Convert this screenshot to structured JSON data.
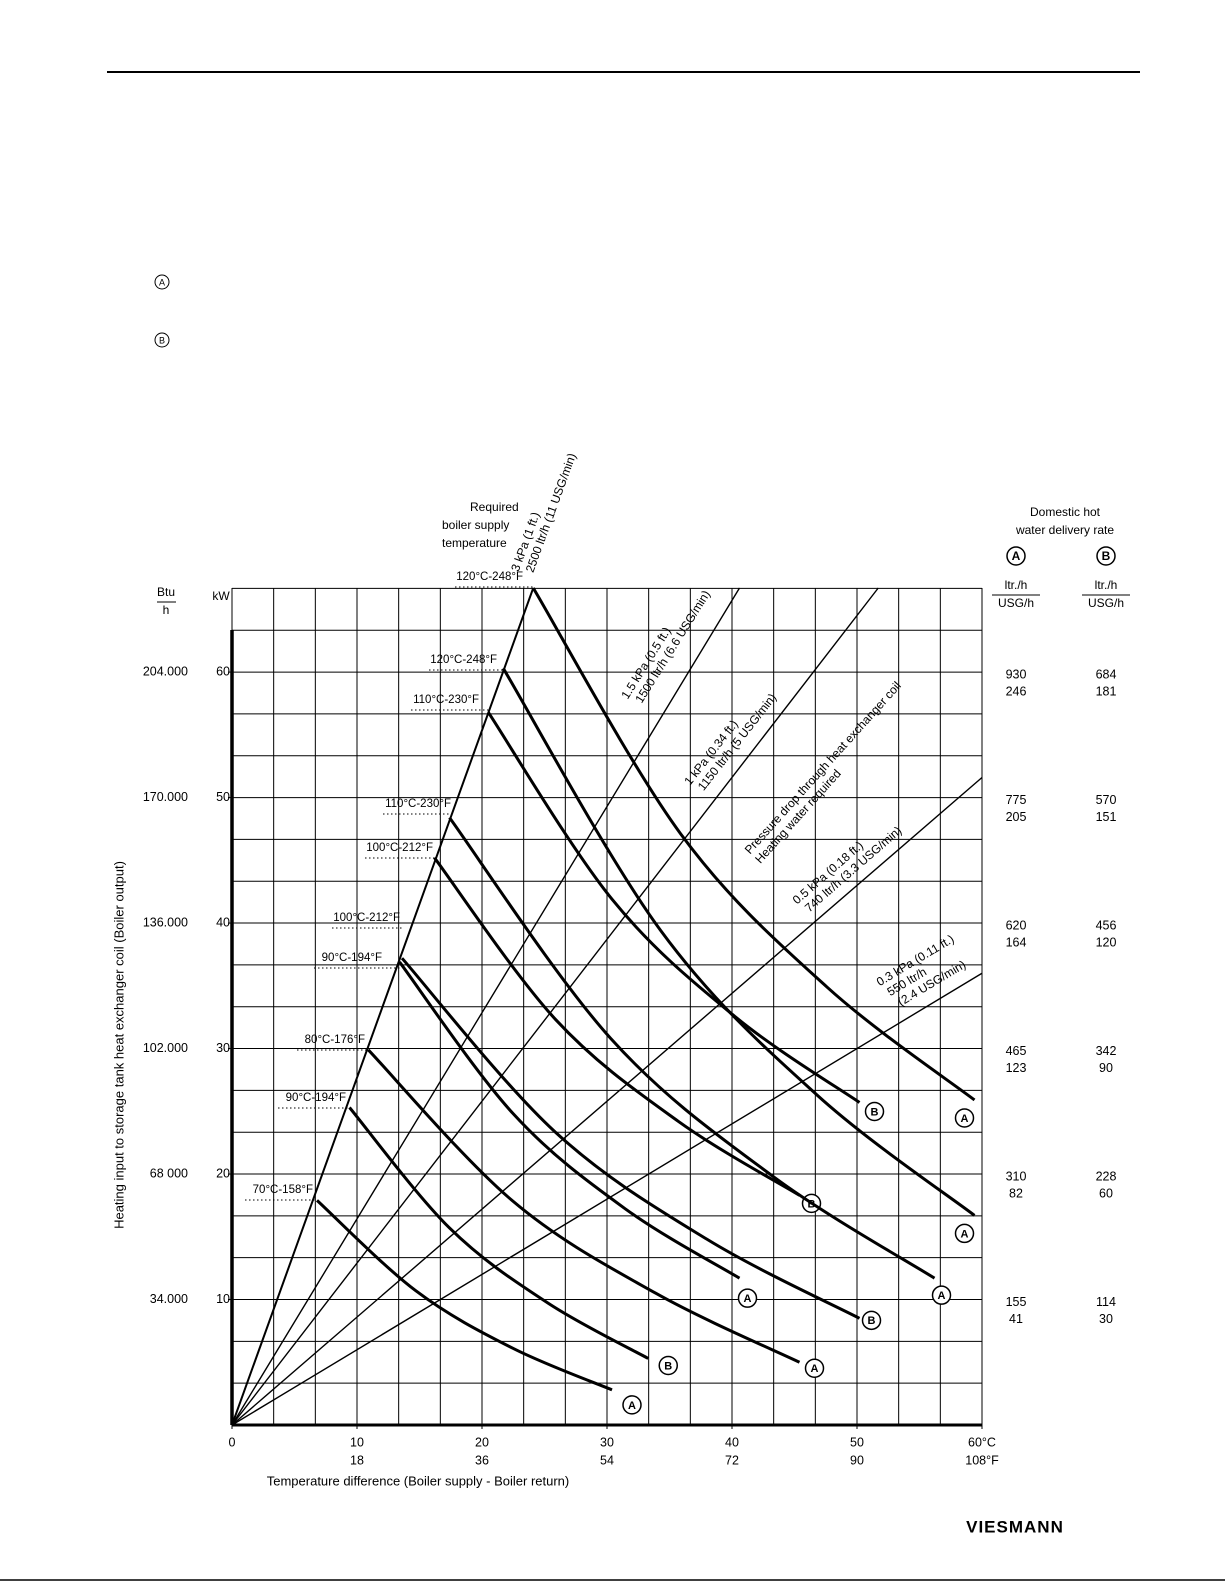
{
  "markers": [
    "A",
    "B"
  ],
  "logo": "VIESMANN",
  "chart_data": {
    "type": "line",
    "color": "#000000",
    "supply_title": [
      "Required",
      "boiler supply",
      "temperature"
    ],
    "xlabel": "Temperature difference (Boiler supply - Boiler return)",
    "ylabel": "Heating input to storage tank heat exchanger coil (Boiler output)",
    "xlim": [
      0,
      60
    ],
    "ylim": [
      0,
      66.7
    ],
    "xticks": [
      0,
      10,
      20,
      30,
      40,
      50,
      {
        "value": 60,
        "label": "60°C"
      }
    ],
    "x2ticks": [
      {
        "value": 10,
        "label": "18"
      },
      {
        "value": 20,
        "label": "36"
      },
      {
        "value": 30,
        "label": "54"
      },
      {
        "value": 40,
        "label": "72"
      },
      {
        "value": 50,
        "label": "90"
      },
      {
        "value": 60,
        "label": "108°F"
      }
    ],
    "y_unit": "kW",
    "yticks": [
      10,
      20,
      30,
      40,
      50,
      60
    ],
    "btu_unit": [
      "Btu",
      "h"
    ],
    "btu_ticks": [
      {
        "value": 10,
        "label": "34.000"
      },
      {
        "value": 20,
        "label": "68 000"
      },
      {
        "value": 30,
        "label": "102.000"
      },
      {
        "value": 40,
        "label": "136.000"
      },
      {
        "value": 50,
        "label": "170.000"
      },
      {
        "value": 60,
        "label": "204.000"
      }
    ],
    "grid": true,
    "minor_grid": 3,
    "rate_title": [
      "Domestic hot",
      "water delivery rate"
    ],
    "rate_units": [
      "ltr./h",
      "USG/h"
    ],
    "rate_columns": [
      {
        "name": "A",
        "ltr_ticks": [
          {
            "value": 10,
            "label": "155"
          },
          {
            "value": 20,
            "label": "310"
          },
          {
            "value": 30,
            "label": "465"
          },
          {
            "value": 40,
            "label": "620"
          },
          {
            "value": 50,
            "label": "775"
          },
          {
            "value": 60,
            "label": "930"
          }
        ],
        "usg_ticks": [
          {
            "value": 10,
            "label": "41"
          },
          {
            "value": 20,
            "label": "82"
          },
          {
            "value": 30,
            "label": "123"
          },
          {
            "value": 40,
            "label": "164"
          },
          {
            "value": 50,
            "label": "205"
          },
          {
            "value": 60,
            "label": "246"
          }
        ]
      },
      {
        "name": "B",
        "ltr_ticks": [
          {
            "value": 10,
            "label": "114"
          },
          {
            "value": 20,
            "label": "228"
          },
          {
            "value": 30,
            "label": "342"
          },
          {
            "value": 40,
            "label": "456"
          },
          {
            "value": 50,
            "label": "570"
          },
          {
            "value": 60,
            "label": "684"
          }
        ],
        "usg_ticks": [
          {
            "value": 10,
            "label": "30"
          },
          {
            "value": 20,
            "label": "60"
          },
          {
            "value": 30,
            "label": "90"
          },
          {
            "value": 40,
            "label": "120"
          },
          {
            "value": 50,
            "label": "151"
          },
          {
            "value": 60,
            "label": "181"
          }
        ]
      }
    ],
    "pressure_title": [
      "Pressure drop through heat exchanger coil",
      "Heating water required"
    ],
    "pressure_lines": [
      {
        "label": [
          "3 kPa (1 ft.)",
          "2500 ltr/h (11 USG/min)"
        ],
        "x": [
          0,
          24.1
        ],
        "values": [
          0,
          66.7
        ]
      },
      {
        "label": [
          "1.5 kPa (0.5 ft.)",
          "1500 ltr/h (6.6 USG/min)"
        ],
        "x": [
          0,
          40.6
        ],
        "values": [
          0,
          66.7
        ]
      },
      {
        "label": [
          "1 kPa (0.34 ft.)",
          "1150 ltr/h (5 USG/min)"
        ],
        "x": [
          0,
          51.7
        ],
        "values": [
          0,
          66.7
        ]
      },
      {
        "label": [
          "0.5 kPa (0.18 ft.)",
          "740 ltr/h (3.3 USG/min)"
        ],
        "x": [
          0,
          60
        ],
        "values": [
          0,
          51.6
        ]
      },
      {
        "label": [
          "0.3 kPa (0.11 ft.)",
          "550 ltr/h",
          "(2.4 USG/min)"
        ],
        "x": [
          0,
          60
        ],
        "values": [
          0,
          36
        ]
      }
    ],
    "series": [
      {
        "name": "70°C-158°F",
        "end_label": "A",
        "x": [
          6.8,
          14.7,
          22.5,
          30.4
        ],
        "values": [
          17.9,
          10.7,
          6.1,
          2.8
        ]
      },
      {
        "name": "90°C-194°F",
        "end_label": "B",
        "x": [
          9.4,
          17.4,
          25.3,
          33.3
        ],
        "values": [
          25.3,
          15.7,
          9.7,
          5.3
        ]
      },
      {
        "name": "80°C-176°F",
        "end_label": "A",
        "x": [
          10.9,
          22.4,
          33.9,
          45.4
        ],
        "values": [
          29.9,
          17.9,
          10.5,
          5.0
        ]
      },
      {
        "name": "90°C-194°F",
        "end_label": "A",
        "x": [
          13.4,
          22.5,
          31.5,
          40.6
        ],
        "values": [
          36.9,
          24.8,
          17.2,
          11.7
        ]
      },
      {
        "name": "100°C-212°F",
        "end_label": "B",
        "x": [
          13.6,
          25.8,
          38.0,
          50.2
        ],
        "values": [
          37.2,
          23.4,
          14.8,
          8.5
        ]
      },
      {
        "name": "100°C-212°F",
        "end_label": "B",
        "x": [
          16.2,
          25.9,
          35.7,
          45.4
        ],
        "values": [
          45.2,
          32.3,
          24.2,
          18.3
        ]
      },
      {
        "name": "110°C-230°F",
        "end_label": "A",
        "x": [
          17.4,
          30.3,
          43.3,
          56.2
        ],
        "values": [
          48.4,
          30.8,
          19.8,
          11.7
        ]
      },
      {
        "name": "110°C-230°F",
        "end_label": "B",
        "x": [
          20.5,
          30.4,
          40.3,
          50.2
        ],
        "values": [
          56.8,
          41.9,
          32.5,
          25.7
        ]
      },
      {
        "name": "120°C-248°F",
        "end_label": "A",
        "x": [
          21.7,
          34.3,
          46.8,
          59.4
        ],
        "values": [
          60.3,
          39.4,
          26.3,
          16.7
        ]
      },
      {
        "name": "120°C-248°F",
        "end_label": "A",
        "x": [
          24.1,
          35.9,
          47.6,
          59.4
        ],
        "values": [
          66.7,
          47.1,
          34.9,
          25.9
        ]
      }
    ]
  }
}
